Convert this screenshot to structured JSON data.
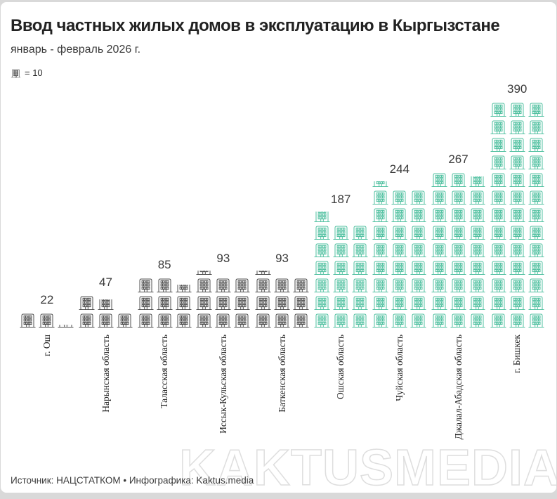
{
  "header": {
    "title": "Ввод частных жилых домов в эксплуатацию в Кыргызстане",
    "subtitle": "январь - февраль 2026 г."
  },
  "legend": {
    "icon": "building-icon",
    "unit_label": "= 10"
  },
  "chart_data": {
    "type": "bar",
    "subtype": "pictogram",
    "unit_per_icon": 10,
    "icons_per_row": 3,
    "title": "Ввод частных жилых домов в эксплуатацию в Кыргызстане",
    "subtitle": "январь - февраль 2026 г.",
    "categories": [
      "г. Ош",
      "Нарынская область",
      "Таласская область",
      "Иссык-Кульская область",
      "Баткенская область",
      "Ошская область",
      "Чуйская область",
      "Джалал-Абадская область",
      "г. Бишкек"
    ],
    "values": [
      22,
      47,
      85,
      93,
      93,
      187,
      244,
      267,
      390
    ],
    "group_colors": [
      "gray",
      "gray",
      "gray",
      "gray",
      "gray",
      "green",
      "green",
      "green",
      "green"
    ],
    "legend_position": "top-left",
    "grid": false,
    "xlabel": "",
    "ylabel": ""
  },
  "colors": {
    "gray_icon": "#4f4f4f",
    "green_icon": "#52c1a1",
    "value_label": "#3b3b3b",
    "watermark_outline": "#dedede"
  },
  "footer": {
    "source": "Источник: НАЦСТАТКОМ • Инфографика: Kaktus.media"
  },
  "watermark": "KAKTUSMEDIA"
}
